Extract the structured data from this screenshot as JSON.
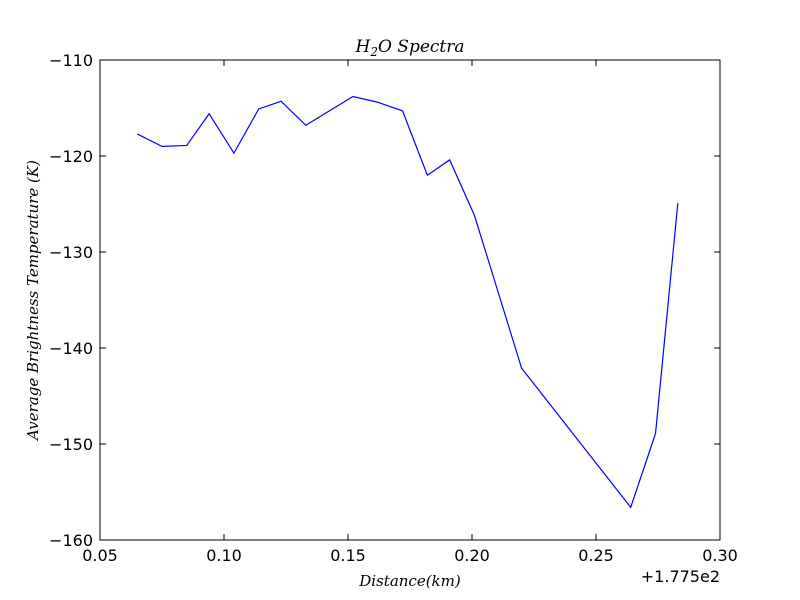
{
  "chart_data": {
    "type": "line",
    "title": "H",
    "title_sub": "2",
    "title_rest": "O Spectra",
    "xlabel": "Distance(km)",
    "ylabel": "Average Brightness Temperature (K)",
    "x_offset_label": "+1.775e2",
    "xlim": [
      0.05,
      0.3
    ],
    "ylim": [
      -160,
      -110
    ],
    "xticks": [
      0.05,
      0.1,
      0.15,
      0.2,
      0.25,
      0.3
    ],
    "xtick_labels": [
      "0.05",
      "0.10",
      "0.15",
      "0.20",
      "0.25",
      "0.30"
    ],
    "yticks": [
      -160,
      -150,
      -140,
      -130,
      -120,
      -110
    ],
    "ytick_labels": [
      "−160",
      "−150",
      "−140",
      "−130",
      "−120",
      "−110"
    ],
    "grid": false,
    "series": [
      {
        "color": "#0000ff",
        "x": [
          0.065,
          0.075,
          0.085,
          0.094,
          0.104,
          0.114,
          0.123,
          0.133,
          0.152,
          0.162,
          0.172,
          0.182,
          0.191,
          0.201,
          0.22,
          0.264,
          0.274,
          0.283
        ],
        "y": [
          -117.7,
          -119.0,
          -118.9,
          -115.6,
          -119.7,
          -115.1,
          -114.3,
          -116.8,
          -113.8,
          -114.4,
          -115.3,
          -122.0,
          -120.4,
          -126.2,
          -142.1,
          -156.6,
          -148.9,
          -124.9
        ]
      }
    ]
  }
}
